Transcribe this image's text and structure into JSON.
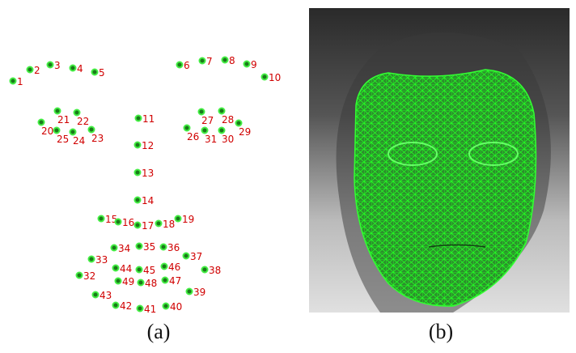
{
  "panel_a": {
    "landmarks": [
      1,
      2,
      3,
      4,
      5,
      6,
      7,
      8,
      9,
      10,
      11,
      12,
      13,
      14,
      15,
      16,
      17,
      18,
      19,
      20,
      21,
      22,
      23,
      24,
      25,
      26,
      27,
      28,
      29,
      30,
      31,
      32,
      33,
      34,
      35,
      36,
      37,
      38,
      39,
      40,
      41,
      42,
      43,
      44,
      45,
      46,
      47,
      48,
      49
    ],
    "caption": "(a)"
  },
  "panel_b": {
    "caption": "(b)"
  }
}
